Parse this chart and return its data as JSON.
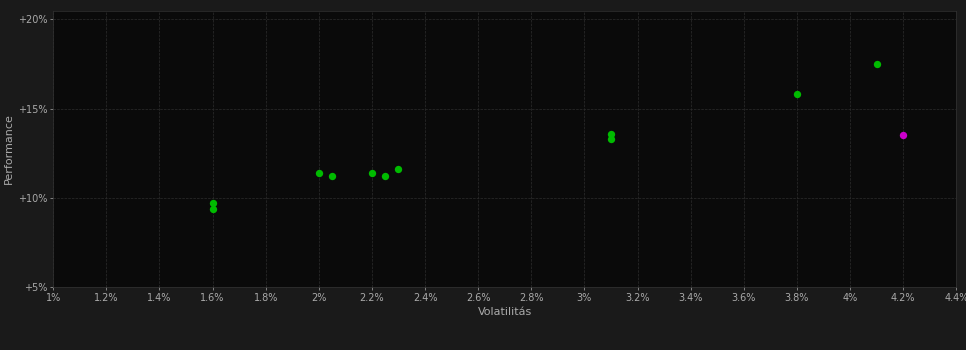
{
  "background_color": "#1a1a1a",
  "plot_bg_color": "#0a0a0a",
  "grid_color": "#2a2a2a",
  "grid_style": "--",
  "xlabel": "Volatilitás",
  "ylabel": "Performance",
  "xlim": [
    0.01,
    0.044
  ],
  "ylim": [
    0.05,
    0.205
  ],
  "xtick_labels": [
    "1%",
    "1.2%",
    "1.4%",
    "1.6%",
    "1.8%",
    "2%",
    "2.2%",
    "2.4%",
    "2.6%",
    "2.8%",
    "3%",
    "3.2%",
    "3.4%",
    "3.6%",
    "3.8%",
    "4%",
    "4.2%",
    "4.4%"
  ],
  "xtick_vals": [
    0.01,
    0.012,
    0.014,
    0.016,
    0.018,
    0.02,
    0.022,
    0.024,
    0.026,
    0.028,
    0.03,
    0.032,
    0.034,
    0.036,
    0.038,
    0.04,
    0.042,
    0.044
  ],
  "ytick_labels": [
    "+5%",
    "+10%",
    "+15%",
    "+20%"
  ],
  "ytick_vals": [
    0.05,
    0.1,
    0.15,
    0.2
  ],
  "green_points": [
    [
      0.016,
      0.097
    ],
    [
      0.016,
      0.094
    ],
    [
      0.02,
      0.114
    ],
    [
      0.0205,
      0.112
    ],
    [
      0.022,
      0.114
    ],
    [
      0.0225,
      0.112
    ],
    [
      0.023,
      0.116
    ],
    [
      0.031,
      0.136
    ],
    [
      0.031,
      0.133
    ],
    [
      0.038,
      0.158
    ],
    [
      0.041,
      0.175
    ]
  ],
  "magenta_points": [
    [
      0.042,
      0.135
    ]
  ],
  "green_color": "#00bb00",
  "magenta_color": "#cc00cc",
  "marker_size": 28,
  "font_color": "#aaaaaa",
  "font_size_ticks": 7,
  "font_size_labels": 8
}
